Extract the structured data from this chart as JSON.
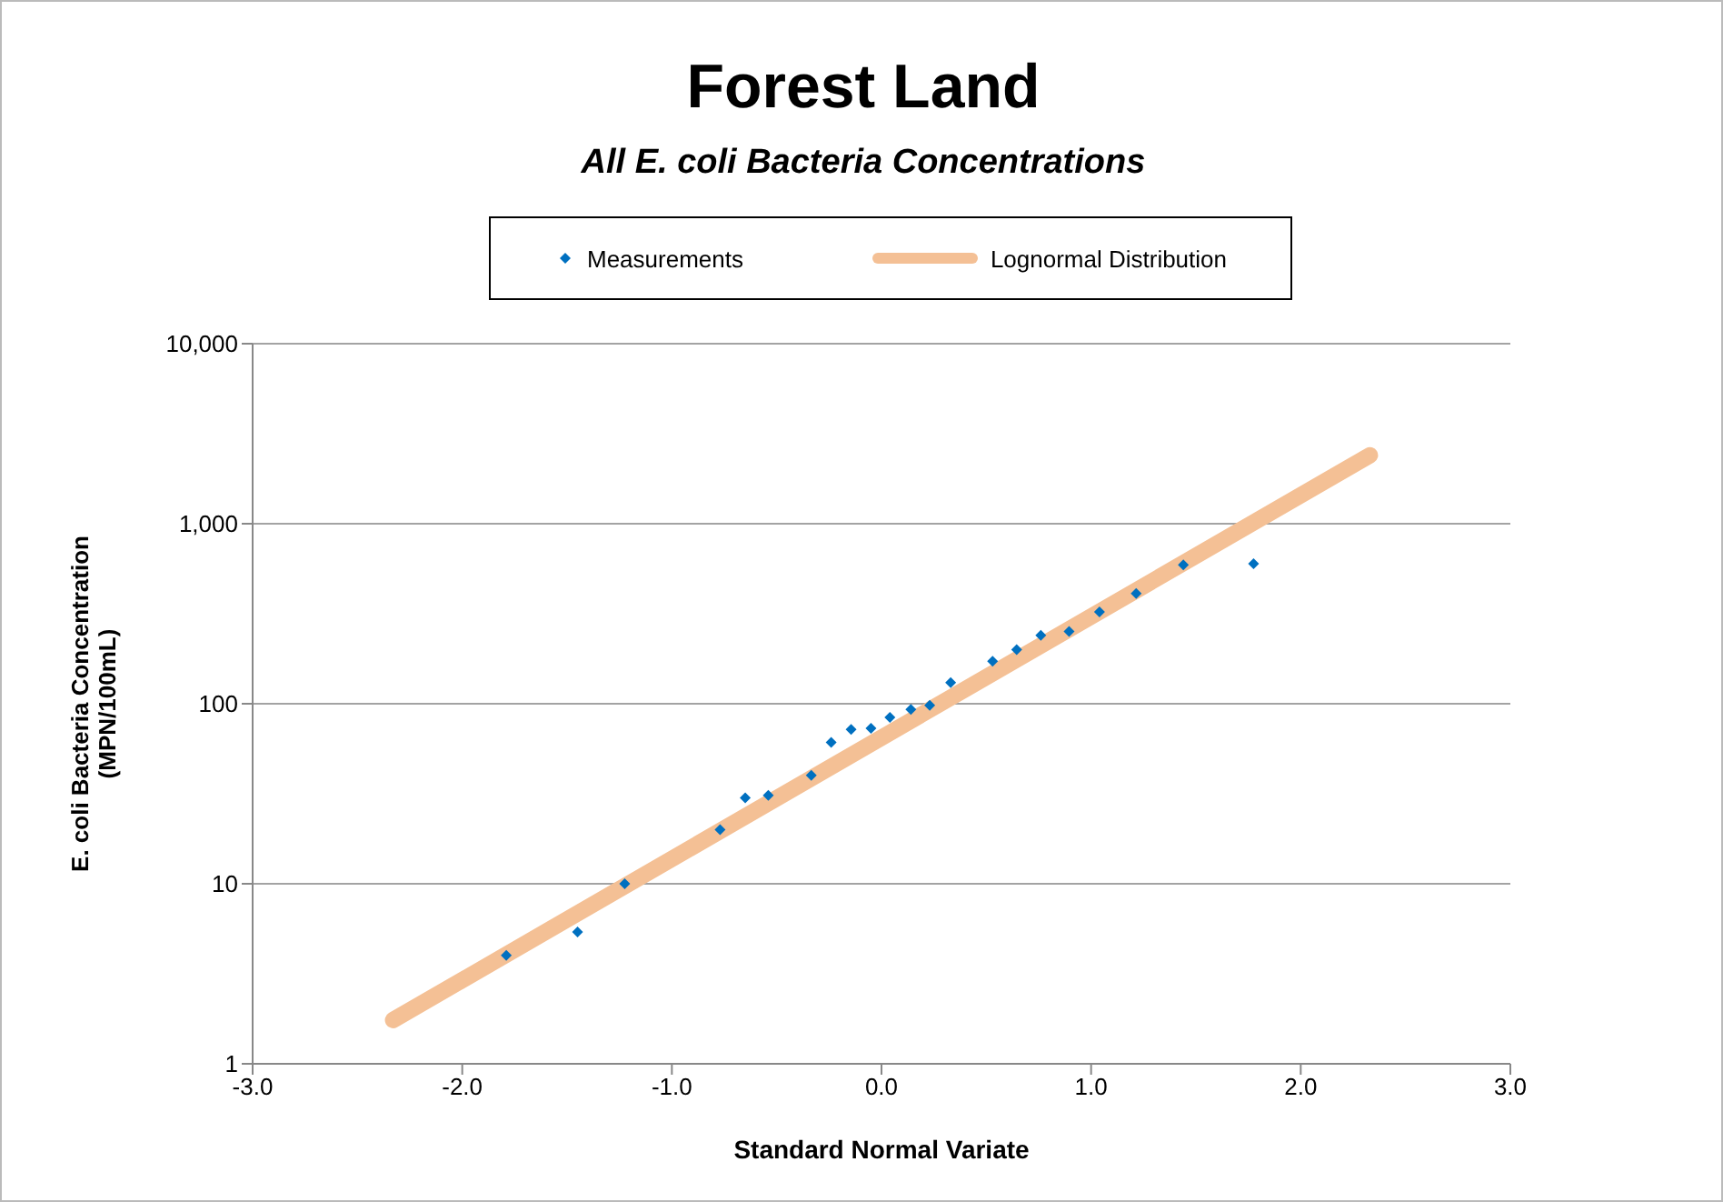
{
  "chart_data": {
    "type": "scatter",
    "title": "Forest Land",
    "subtitle": "All E. coli Bacteria Concentrations",
    "xlabel": "Standard Normal Variate",
    "ylabel": "E. coli Bacteria Concentration\n(MPN/100mL)",
    "log": "y",
    "grid": "y",
    "legend": "top",
    "xlim": [
      -3,
      3
    ],
    "xticks": [
      {
        "value": -3,
        "label": "-3.0"
      },
      {
        "value": -2,
        "label": "-2.0"
      },
      {
        "value": -1,
        "label": "-1.0"
      },
      {
        "value": 0,
        "label": "0.0"
      },
      {
        "value": 1,
        "label": "1.0"
      },
      {
        "value": 2,
        "label": "2.0"
      },
      {
        "value": 3,
        "label": "3.0"
      }
    ],
    "ylim": [
      1,
      10000
    ],
    "yticks": [
      1,
      10,
      100,
      {
        "value": 1000,
        "label": "1,000"
      },
      {
        "value": 10000,
        "label": "10,000"
      }
    ],
    "series": [
      {
        "name": "Measurements",
        "marker": "diamond",
        "color": "#0070c0",
        "x": [
          -1.79,
          -1.45,
          -1.225,
          -0.77,
          -0.65,
          -0.54,
          -0.335,
          -0.24,
          -0.145,
          -0.05,
          0.04,
          0.14,
          0.23,
          0.33,
          0.53,
          0.645,
          0.76,
          0.895,
          1.04,
          1.215,
          1.44,
          1.775
        ],
        "values": [
          4,
          5.4,
          10,
          20,
          30,
          31,
          40,
          61,
          72,
          73,
          84,
          93,
          98,
          131,
          172,
          200,
          240,
          252,
          324,
          410,
          590,
          600
        ]
      },
      {
        "name": "Lognormal Distribution",
        "type": "line",
        "marker": "none",
        "color": "#f4c095",
        "x": [
          -2.33,
          2.33
        ],
        "values": [
          1.75,
          2400
        ]
      }
    ]
  }
}
